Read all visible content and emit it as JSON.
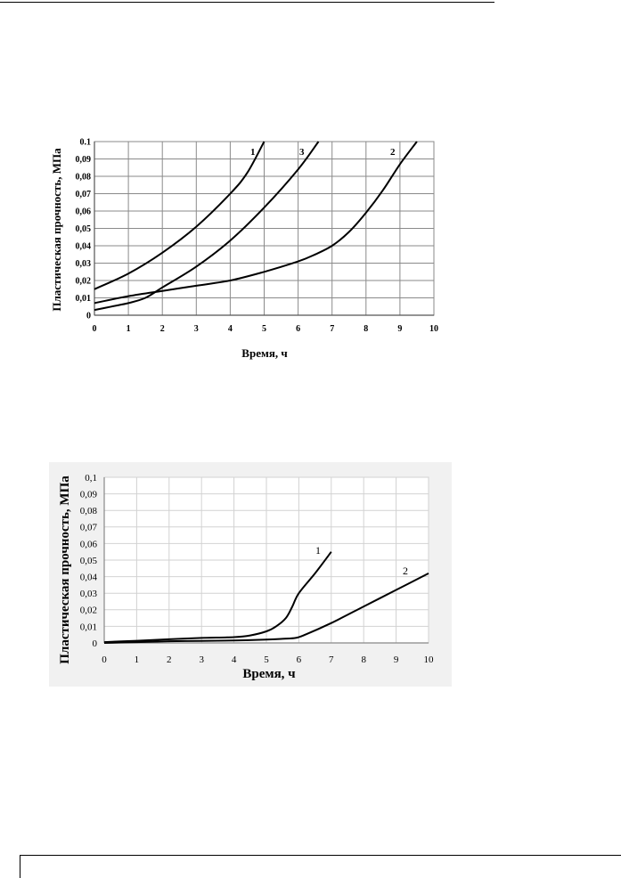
{
  "chart_data": [
    {
      "type": "line",
      "xlabel": "Время, ч",
      "ylabel": "Пластическая прочность, МПа",
      "xlim": [
        0,
        10
      ],
      "ylim": [
        0,
        0.1
      ],
      "grid": true,
      "x_ticks": [
        "0",
        "1",
        "2",
        "3",
        "4",
        "5",
        "6",
        "7",
        "8",
        "9",
        "10"
      ],
      "y_ticks": [
        "0",
        "0,01",
        "0,02",
        "0,03",
        "0,04",
        "0,05",
        "0,06",
        "0,07",
        "0,08",
        "0,09",
        "0.1"
      ],
      "series": [
        {
          "name": "1",
          "x": [
            0,
            1,
            2,
            3,
            4,
            4.5,
            5
          ],
          "y": [
            0.015,
            0.024,
            0.036,
            0.051,
            0.07,
            0.082,
            0.1
          ]
        },
        {
          "name": "2",
          "x": [
            0,
            1,
            2,
            3,
            4,
            5,
            6,
            6.5,
            7,
            7.5,
            8,
            8.5,
            9,
            9.5
          ],
          "y": [
            0.007,
            0.011,
            0.014,
            0.017,
            0.02,
            0.025,
            0.031,
            0.035,
            0.04,
            0.048,
            0.059,
            0.072,
            0.087,
            0.1
          ]
        },
        {
          "name": "3",
          "x": [
            0,
            0.5,
            1,
            1.5,
            2,
            3,
            4,
            5,
            6,
            6.6
          ],
          "y": [
            0.003,
            0.005,
            0.007,
            0.01,
            0.016,
            0.028,
            0.043,
            0.062,
            0.084,
            0.1
          ]
        }
      ]
    },
    {
      "type": "line",
      "xlabel": "Время, ч",
      "ylabel": "Пластическая прочность, МПа",
      "xlim": [
        0,
        10
      ],
      "ylim": [
        0,
        0.1
      ],
      "grid": true,
      "x_ticks": [
        "0",
        "1",
        "2",
        "3",
        "4",
        "5",
        "6",
        "7",
        "8",
        "9",
        "10"
      ],
      "y_ticks": [
        "0",
        "0,01",
        "0,02",
        "0,03",
        "0,04",
        "0,05",
        "0,06",
        "0,07",
        "0,08",
        "0,09",
        "0,1"
      ],
      "series": [
        {
          "name": "1",
          "x": [
            0,
            1,
            2,
            3,
            4,
            4.5,
            5,
            5.3,
            5.6,
            5.8,
            6,
            6.5,
            7
          ],
          "y": [
            0.0005,
            0.0013,
            0.0022,
            0.003,
            0.0035,
            0.0045,
            0.007,
            0.01,
            0.015,
            0.022,
            0.03,
            0.042,
            0.055
          ]
        },
        {
          "name": "2",
          "x": [
            0,
            1,
            2,
            3,
            4,
            5,
            5.5,
            5.9,
            6.2,
            7,
            8,
            9,
            10
          ],
          "y": [
            0,
            0.0005,
            0.001,
            0.0012,
            0.0015,
            0.002,
            0.0025,
            0.003,
            0.005,
            0.012,
            0.022,
            0.032,
            0.042
          ]
        }
      ]
    }
  ]
}
